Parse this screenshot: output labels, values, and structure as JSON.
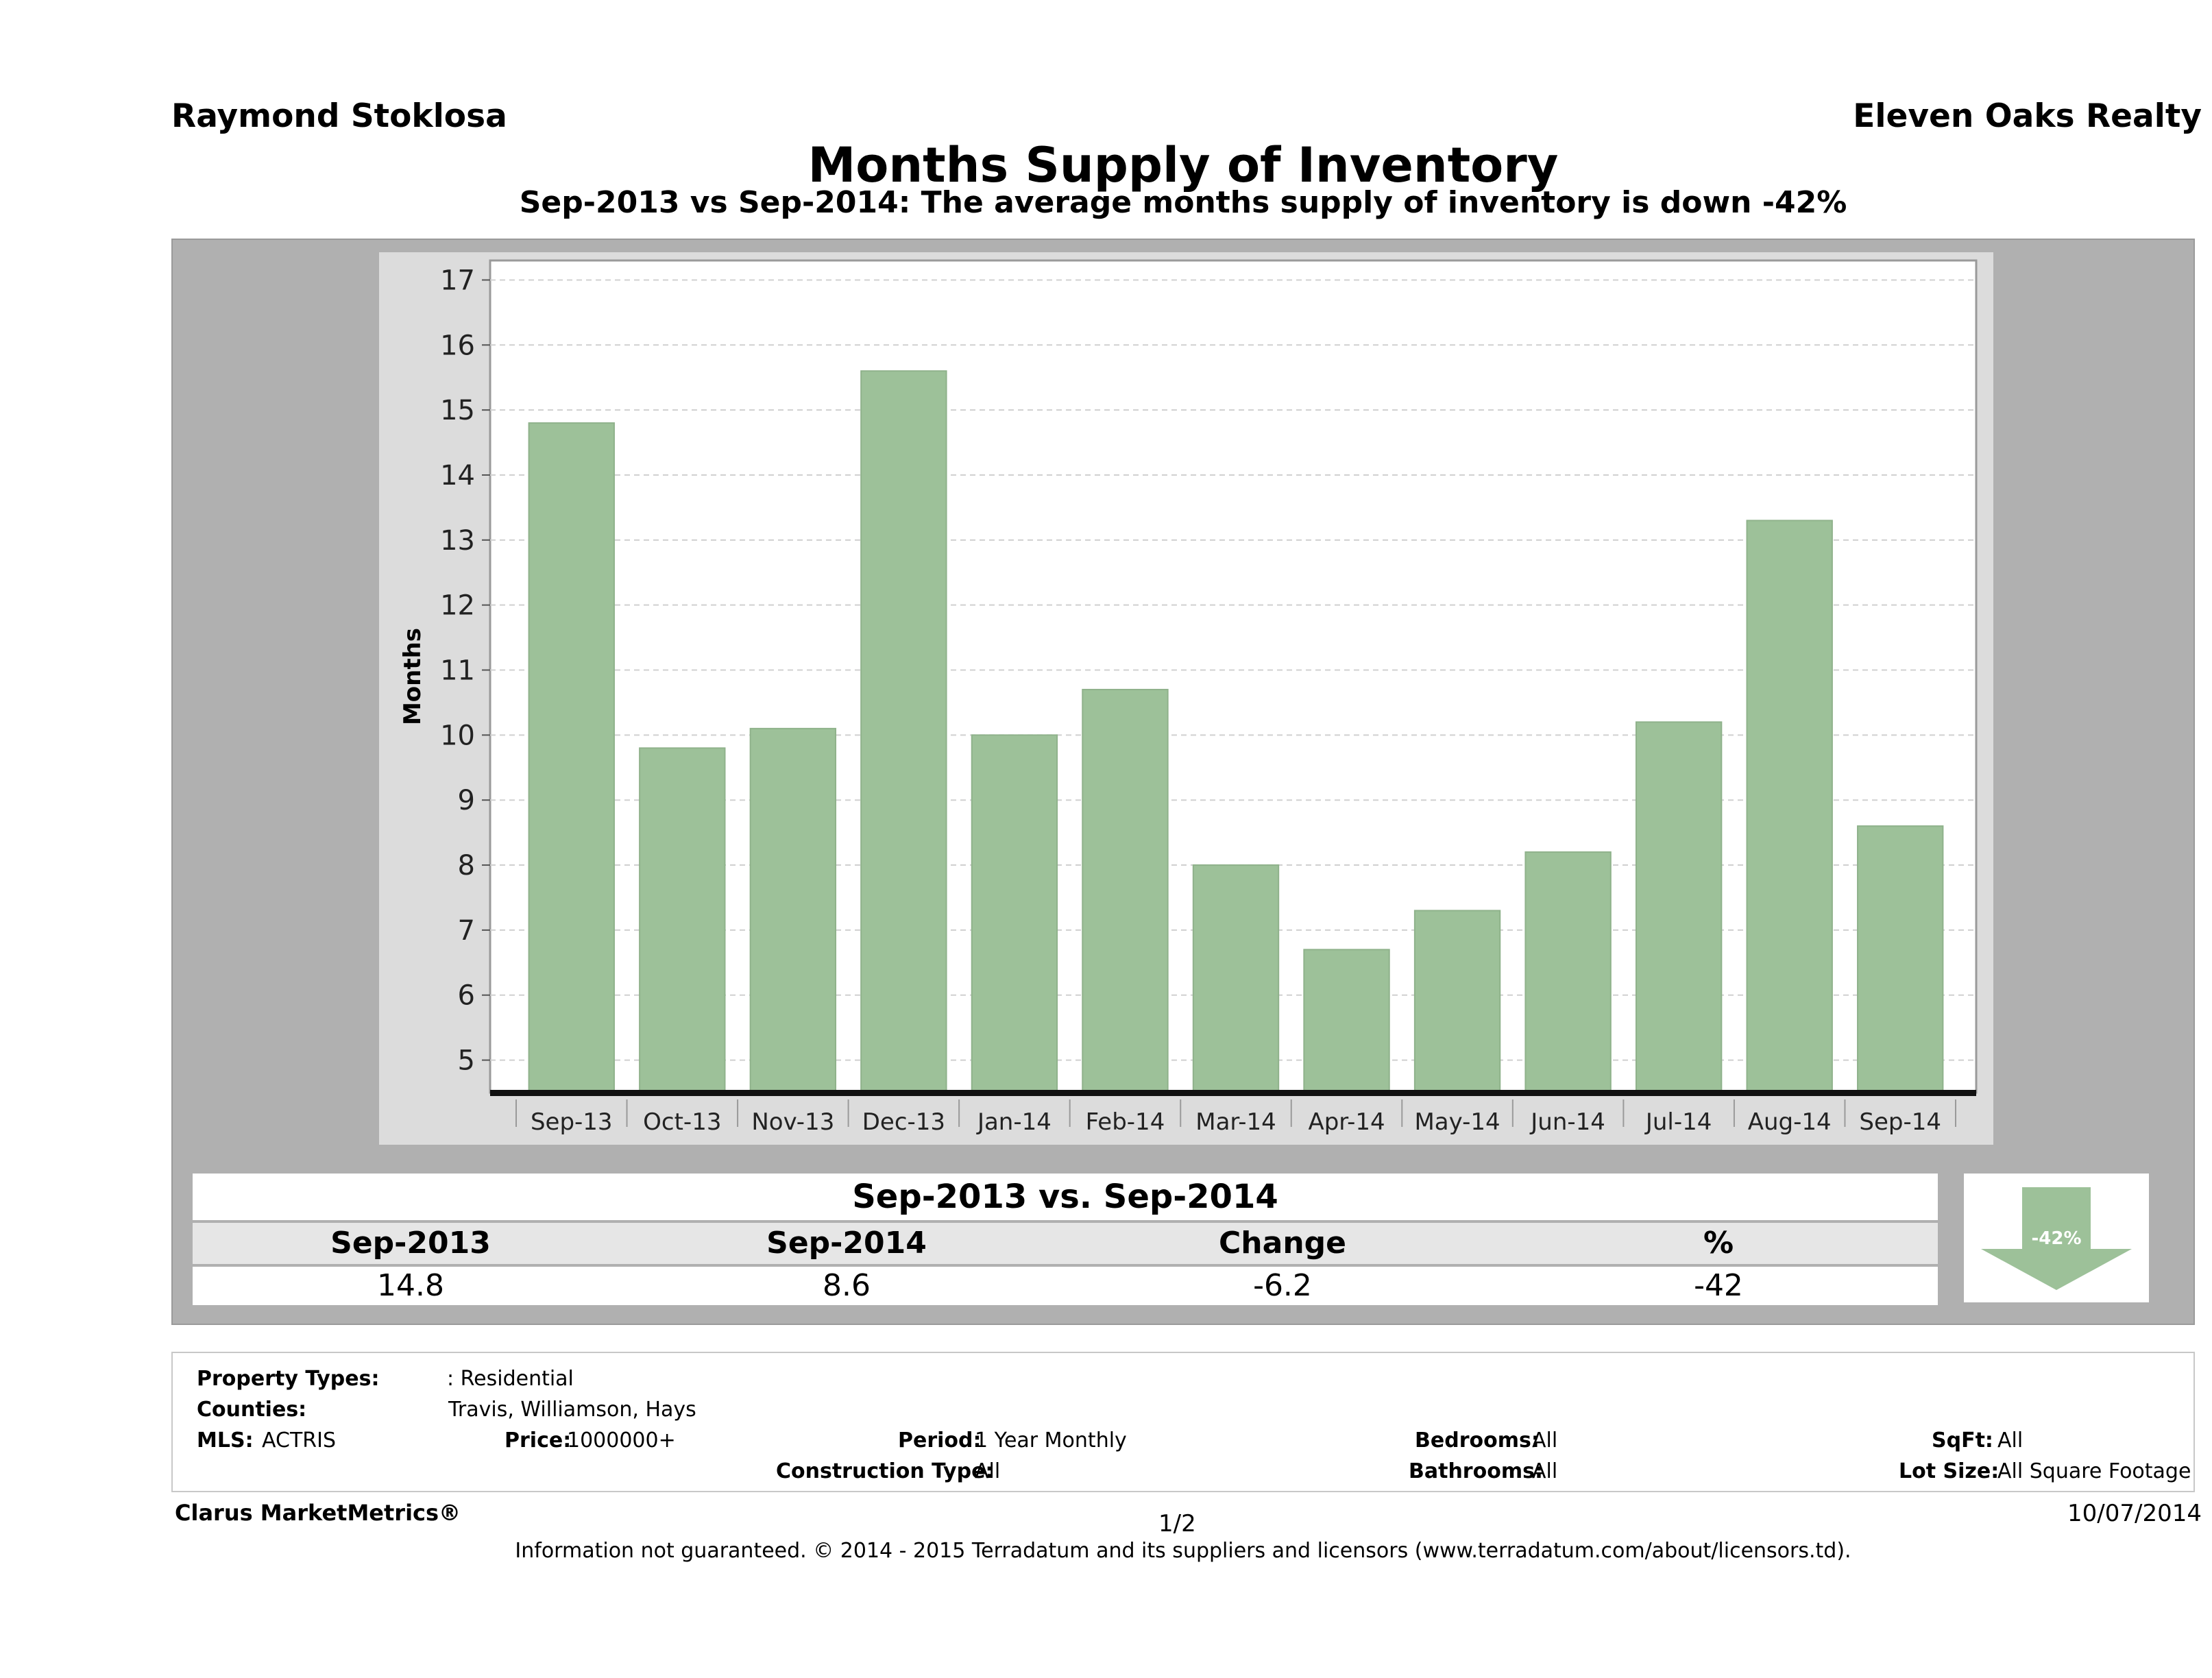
{
  "header": {
    "agent": "Raymond Stoklosa",
    "firm": "Eleven Oaks Realty",
    "title": "Months Supply of Inventory",
    "subtitle": "Sep-2013 vs Sep-2014: The average months supply of inventory is down -42%"
  },
  "chart_data": {
    "type": "bar",
    "title": "Months Supply of Inventory",
    "ylabel": "Months",
    "xlabel": "",
    "categories": [
      "Sep-13",
      "Oct-13",
      "Nov-13",
      "Dec-13",
      "Jan-14",
      "Feb-14",
      "Mar-14",
      "Apr-14",
      "May-14",
      "Jun-14",
      "Jul-14",
      "Aug-14",
      "Sep-14"
    ],
    "values": [
      14.8,
      9.8,
      10.1,
      15.6,
      10.0,
      10.7,
      8.0,
      6.7,
      7.3,
      8.2,
      10.2,
      13.3,
      8.6
    ],
    "ylim": [
      4.5,
      17.3
    ],
    "yticks": [
      5,
      6,
      7,
      8,
      9,
      10,
      11,
      12,
      13,
      14,
      15,
      16,
      17
    ],
    "grid": true,
    "bar_color": "#9dc199"
  },
  "summary": {
    "title": "Sep-2013 vs. Sep-2014",
    "headers": [
      "Sep-2013",
      "Sep-2014",
      "Change",
      "%"
    ],
    "values": [
      "14.8",
      "8.6",
      "-6.2",
      "-42"
    ],
    "arrow_label": "-42%",
    "arrow_color": "#9dc199"
  },
  "meta": {
    "property_types_label": "Property Types:",
    "property_types_value": ": Residential",
    "counties_label": "Counties:",
    "counties_value": "Travis, Williamson, Hays",
    "mls_label": "MLS:",
    "mls_value": "ACTRIS",
    "price_label": "Price:",
    "price_value": "1000000+",
    "period_label": "Period:",
    "period_value": "1 Year Monthly",
    "construction_label": "Construction Type:",
    "construction_value": "All",
    "bedrooms_label": "Bedrooms:",
    "bedrooms_value": "All",
    "bathrooms_label": "Bathrooms:",
    "bathrooms_value": "All",
    "sqft_label": "SqFt:",
    "sqft_value": "All",
    "lotsize_label": "Lot Size:",
    "lotsize_value": "All Square Footage"
  },
  "footer": {
    "brand": "Clarus MarketMetrics®",
    "page": "1/2",
    "date": "10/07/2014",
    "note": "Information not guaranteed. © 2014 - 2015 Terradatum and its suppliers and licensors (www.terradatum.com/about/licensors.td)."
  }
}
